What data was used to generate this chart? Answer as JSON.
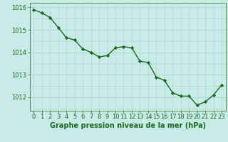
{
  "x": [
    0,
    1,
    2,
    3,
    4,
    5,
    6,
    7,
    8,
    9,
    10,
    11,
    12,
    13,
    14,
    15,
    16,
    17,
    18,
    19,
    20,
    21,
    22,
    23
  ],
  "y": [
    1015.9,
    1015.75,
    1015.55,
    1015.1,
    1014.65,
    1014.55,
    1014.15,
    1014.0,
    1013.8,
    1013.85,
    1014.2,
    1014.25,
    1014.2,
    1013.6,
    1013.55,
    1012.9,
    1012.75,
    1012.2,
    1012.05,
    1012.05,
    1011.65,
    1011.8,
    1012.1,
    1012.55
  ],
  "line_color": "#1a6b1a",
  "marker": "D",
  "marker_size": 2.2,
  "bg_color": "#c8ebe8",
  "grid_color": "#b0d8d4",
  "xlabel": "Graphe pression niveau de la mer (hPa)",
  "xlabel_color": "#1a6b1a",
  "xlabel_fontsize": 7,
  "tick_color": "#1a6b1a",
  "tick_fontsize": 6,
  "ylim": [
    1011.4,
    1016.2
  ],
  "yticks": [
    1012,
    1013,
    1014,
    1015,
    1016
  ],
  "xtick_labels": [
    "0",
    "1",
    "2",
    "3",
    "4",
    "5",
    "6",
    "7",
    "8",
    "9",
    "10",
    "11",
    "12",
    "13",
    "14",
    "15",
    "16",
    "17",
    "18",
    "19",
    "20",
    "21",
    "22",
    "23"
  ],
  "line_width": 1.0
}
